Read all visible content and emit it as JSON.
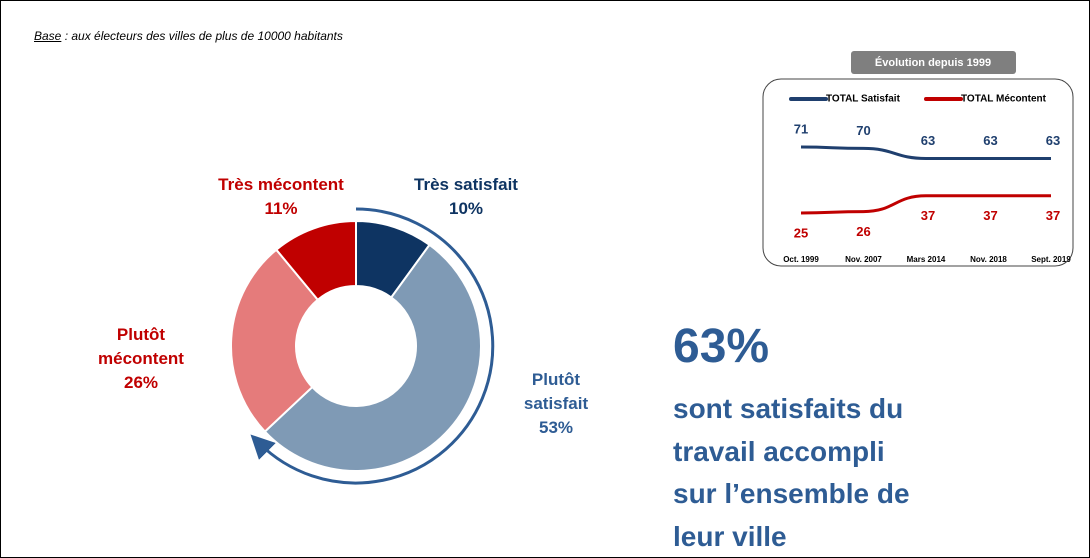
{
  "base": {
    "label": "Base",
    "text": " : aux électeurs des villes de plus de 10000 habitants"
  },
  "chart_data": [
    {
      "type": "pie",
      "donut": true,
      "categories": [
        "Très satisfait",
        "Plutôt satisfait",
        "Plutôt mécontent",
        "Très mécontent"
      ],
      "values": [
        10,
        53,
        26,
        11
      ],
      "value_labels": [
        "10%",
        "53%",
        "26%",
        "11%"
      ],
      "colors": [
        "#0e3462",
        "#7f9ab5",
        "#e57b7b",
        "#c00000"
      ],
      "label_colors": [
        "#0e3462",
        "#2e5c94",
        "#c00000",
        "#c00000"
      ]
    },
    {
      "type": "line",
      "title": "Évolution depuis 1999",
      "categories": [
        "Oct. 1999",
        "Nov. 2007",
        "Mars 2014",
        "Nov. 2018",
        "Sept. 2019"
      ],
      "series": [
        {
          "name": "TOTAL Satisfait",
          "color": "#1f3f6e",
          "values": [
            71,
            70,
            63,
            63,
            63
          ]
        },
        {
          "name": "TOTAL Mécontent",
          "color": "#c00000",
          "values": [
            25,
            26,
            37,
            37,
            37
          ]
        }
      ]
    }
  ],
  "headline": {
    "value": "63%",
    "lines": [
      "sont satisfaits du",
      "travail accompli",
      "sur l’ensemble de",
      "leur ville"
    ]
  }
}
